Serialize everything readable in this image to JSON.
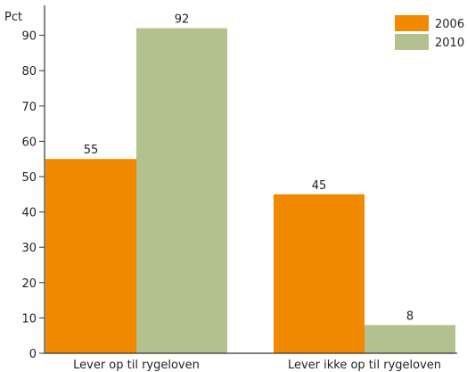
{
  "chart_data": {
    "type": "bar",
    "y_unit_label": "Pct",
    "categories": [
      "Lever op til rygeloven",
      "Lever ikke op til rygeloven"
    ],
    "series": [
      {
        "name": "2006",
        "values": [
          55,
          45
        ],
        "color": "#f18a00"
      },
      {
        "name": "2010",
        "values": [
          92,
          8
        ],
        "color": "#b3c08f"
      }
    ],
    "ylim": [
      0,
      100
    ],
    "yticks": [
      0,
      10,
      20,
      30,
      40,
      50,
      60,
      70,
      80,
      90
    ],
    "grid": false,
    "legend_position": "top-right",
    "data_labels": true,
    "axis_color": "#333333"
  }
}
